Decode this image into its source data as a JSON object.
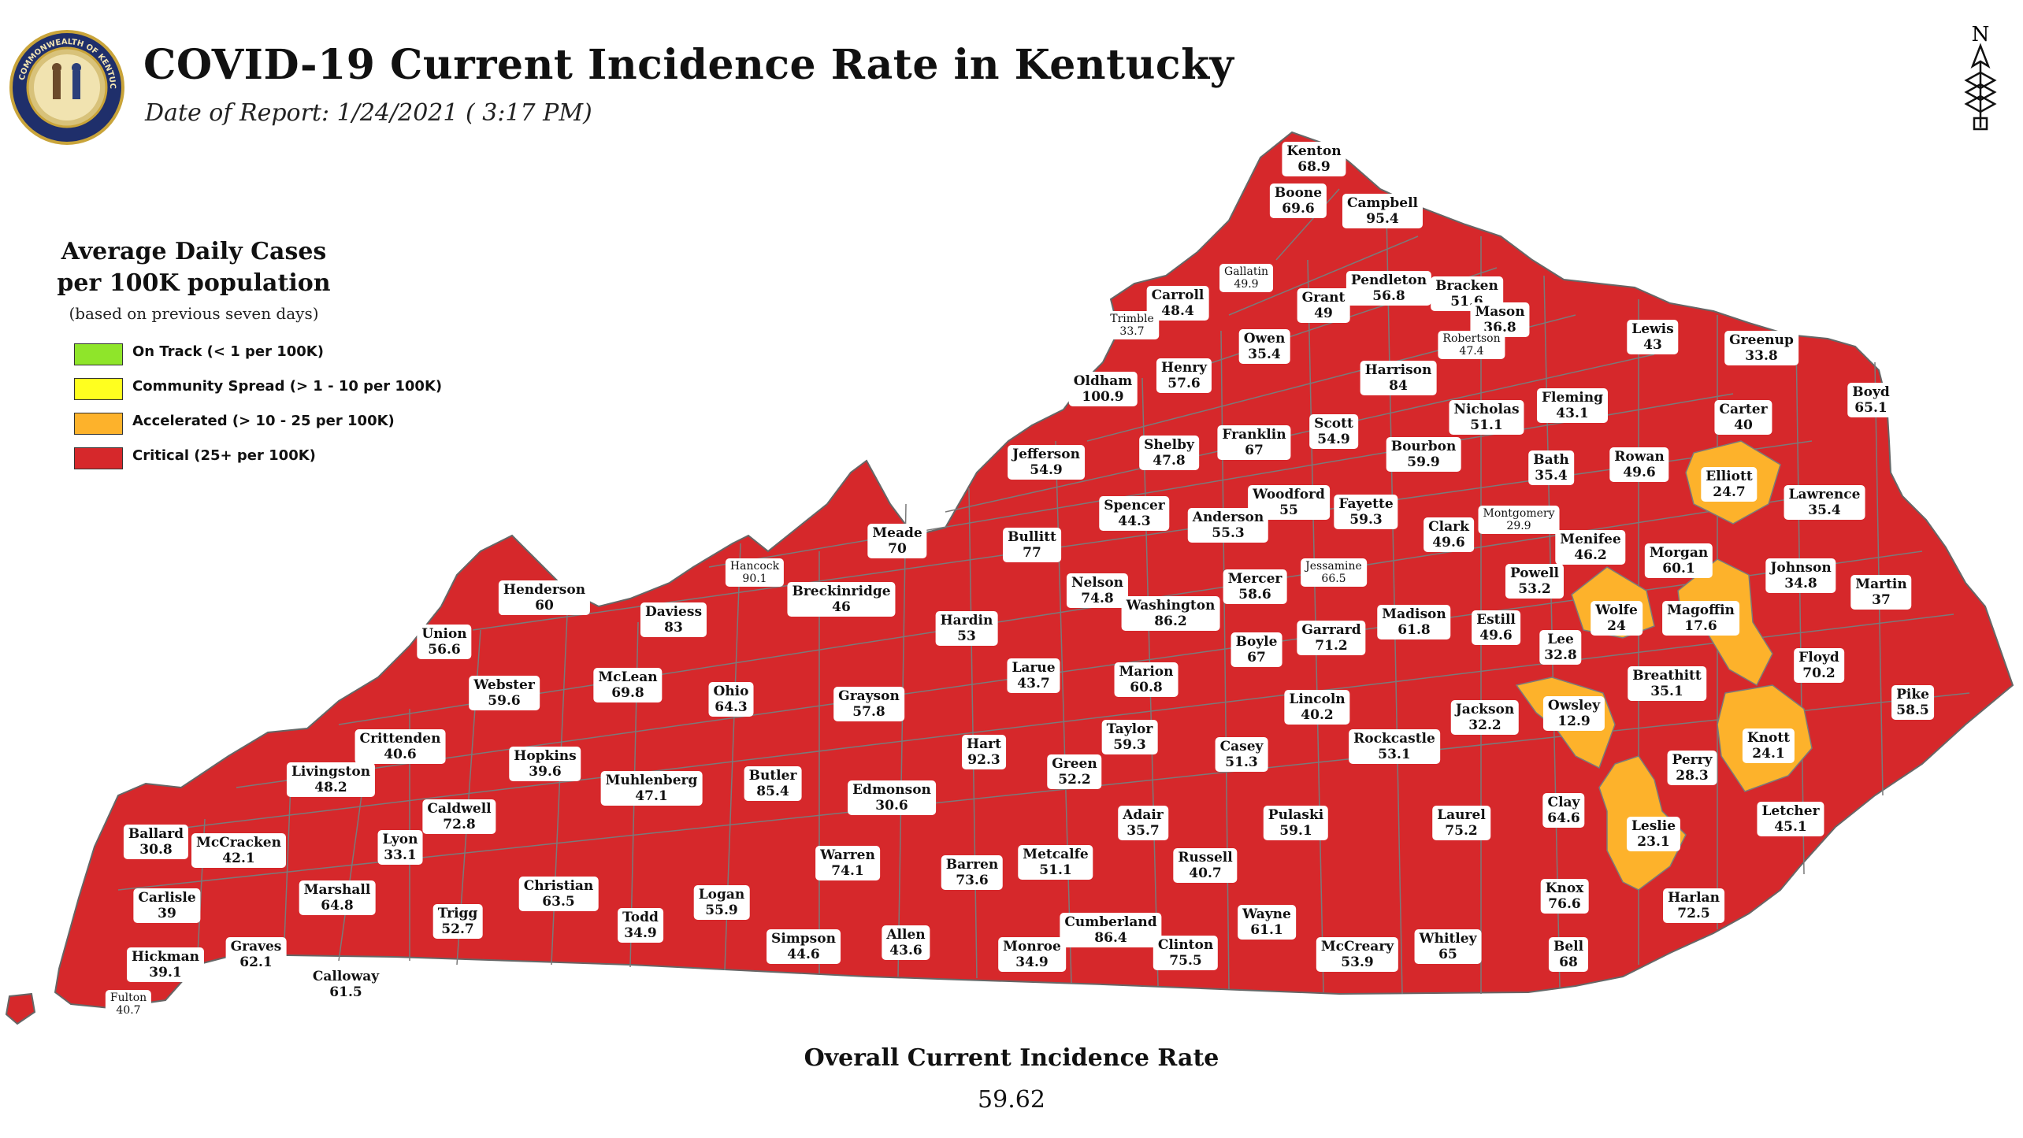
{
  "header": {
    "title": "COVID-19 Current Incidence Rate in Kentucky",
    "subtitle": "Date of Report: 1/24/2021 ( 3:17 PM)",
    "seal_text": "COMMONWEALTH OF KENTUCKY",
    "north_label": "N"
  },
  "legend": {
    "title_line1": "Average Daily Cases",
    "title_line2": "per 100K population",
    "subtitle": "(based on previous seven days)",
    "items": [
      {
        "label": "On Track (< 1 per 100K)",
        "color": "#8fe52a"
      },
      {
        "label": "Community Spread (> 1 - 10 per 100K)",
        "color": "#ffff1f"
      },
      {
        "label": "Accelerated (> 10 - 25 per 100K)",
        "color": "#fdb22b"
      },
      {
        "label": "Critical (25+ per 100K)",
        "color": "#d6282b"
      }
    ]
  },
  "colors": {
    "critical": "#d6282b",
    "accelerated": "#fdb22b",
    "border": "#777777"
  },
  "counties": [
    {
      "name": "Kenton",
      "rate": "68.9",
      "category": "critical"
    },
    {
      "name": "Boone",
      "rate": "69.6",
      "category": "critical"
    },
    {
      "name": "Campbell",
      "rate": "95.4",
      "category": "critical"
    },
    {
      "name": "Gallatin",
      "rate": "49.9",
      "category": "critical"
    },
    {
      "name": "Carroll",
      "rate": "48.4",
      "category": "critical"
    },
    {
      "name": "Trimble",
      "rate": "33.7",
      "category": "critical"
    },
    {
      "name": "Grant",
      "rate": "49",
      "category": "critical"
    },
    {
      "name": "Pendleton",
      "rate": "56.8",
      "category": "critical"
    },
    {
      "name": "Bracken",
      "rate": "51.6",
      "category": "critical"
    },
    {
      "name": "Mason",
      "rate": "36.8",
      "category": "critical"
    },
    {
      "name": "Lewis",
      "rate": "43",
      "category": "critical"
    },
    {
      "name": "Greenup",
      "rate": "33.8",
      "category": "critical"
    },
    {
      "name": "Owen",
      "rate": "35.4",
      "category": "critical"
    },
    {
      "name": "Robertson",
      "rate": "47.4",
      "category": "critical"
    },
    {
      "name": "Henry",
      "rate": "57.6",
      "category": "critical"
    },
    {
      "name": "Oldham",
      "rate": "100.9",
      "category": "critical"
    },
    {
      "name": "Harrison",
      "rate": "84",
      "category": "critical"
    },
    {
      "name": "Fleming",
      "rate": "43.1",
      "category": "critical"
    },
    {
      "name": "Boyd",
      "rate": "65.1",
      "category": "critical"
    },
    {
      "name": "Carter",
      "rate": "40",
      "category": "critical"
    },
    {
      "name": "Nicholas",
      "rate": "51.1",
      "category": "critical"
    },
    {
      "name": "Scott",
      "rate": "54.9",
      "category": "critical"
    },
    {
      "name": "Franklin",
      "rate": "67",
      "category": "critical"
    },
    {
      "name": "Shelby",
      "rate": "47.8",
      "category": "critical"
    },
    {
      "name": "Jefferson",
      "rate": "54.9",
      "category": "critical"
    },
    {
      "name": "Bourbon",
      "rate": "59.9",
      "category": "critical"
    },
    {
      "name": "Bath",
      "rate": "35.4",
      "category": "critical"
    },
    {
      "name": "Rowan",
      "rate": "49.6",
      "category": "critical"
    },
    {
      "name": "Elliott",
      "rate": "24.7",
      "category": "accelerated"
    },
    {
      "name": "Lawrence",
      "rate": "35.4",
      "category": "critical"
    },
    {
      "name": "Woodford",
      "rate": "55",
      "category": "critical"
    },
    {
      "name": "Anderson",
      "rate": "55.3",
      "category": "critical"
    },
    {
      "name": "Spencer",
      "rate": "44.3",
      "category": "critical"
    },
    {
      "name": "Fayette",
      "rate": "59.3",
      "category": "critical"
    },
    {
      "name": "Montgomery",
      "rate": "29.9",
      "category": "critical"
    },
    {
      "name": "Clark",
      "rate": "49.6",
      "category": "critical"
    },
    {
      "name": "Menifee",
      "rate": "46.2",
      "category": "critical"
    },
    {
      "name": "Meade",
      "rate": "70",
      "category": "critical"
    },
    {
      "name": "Bullitt",
      "rate": "77",
      "category": "critical"
    },
    {
      "name": "Hancock",
      "rate": "90.1",
      "category": "critical"
    },
    {
      "name": "Morgan",
      "rate": "60.1",
      "category": "critical"
    },
    {
      "name": "Johnson",
      "rate": "34.8",
      "category": "critical"
    },
    {
      "name": "Martin",
      "rate": "37",
      "category": "critical"
    },
    {
      "name": "Jessamine",
      "rate": "66.5",
      "category": "critical"
    },
    {
      "name": "Mercer",
      "rate": "58.6",
      "category": "critical"
    },
    {
      "name": "Nelson",
      "rate": "74.8",
      "category": "critical"
    },
    {
      "name": "Powell",
      "rate": "53.2",
      "category": "critical"
    },
    {
      "name": "Henderson",
      "rate": "60",
      "category": "critical"
    },
    {
      "name": "Breckinridge",
      "rate": "46",
      "category": "critical"
    },
    {
      "name": "Daviess",
      "rate": "83",
      "category": "critical"
    },
    {
      "name": "Washington",
      "rate": "86.2",
      "category": "critical"
    },
    {
      "name": "Madison",
      "rate": "61.8",
      "category": "critical"
    },
    {
      "name": "Estill",
      "rate": "49.6",
      "category": "critical"
    },
    {
      "name": "Wolfe",
      "rate": "24",
      "category": "accelerated"
    },
    {
      "name": "Magoffin",
      "rate": "17.6",
      "category": "accelerated"
    },
    {
      "name": "Hardin",
      "rate": "53",
      "category": "critical"
    },
    {
      "name": "Garrard",
      "rate": "71.2",
      "category": "critical"
    },
    {
      "name": "Union",
      "rate": "56.6",
      "category": "critical"
    },
    {
      "name": "Boyle",
      "rate": "67",
      "category": "critical"
    },
    {
      "name": "Lee",
      "rate": "32.8",
      "category": "critical"
    },
    {
      "name": "Floyd",
      "rate": "70.2",
      "category": "critical"
    },
    {
      "name": "Larue",
      "rate": "43.7",
      "category": "critical"
    },
    {
      "name": "Marion",
      "rate": "60.8",
      "category": "critical"
    },
    {
      "name": "Breathitt",
      "rate": "35.1",
      "category": "critical"
    },
    {
      "name": "McLean",
      "rate": "69.8",
      "category": "critical"
    },
    {
      "name": "Webster",
      "rate": "59.6",
      "category": "critical"
    },
    {
      "name": "Ohio",
      "rate": "64.3",
      "category": "critical"
    },
    {
      "name": "Grayson",
      "rate": "57.8",
      "category": "critical"
    },
    {
      "name": "Lincoln",
      "rate": "40.2",
      "category": "critical"
    },
    {
      "name": "Pike",
      "rate": "58.5",
      "category": "critical"
    },
    {
      "name": "Owsley",
      "rate": "12.9",
      "category": "accelerated"
    },
    {
      "name": "Jackson",
      "rate": "32.2",
      "category": "critical"
    },
    {
      "name": "Taylor",
      "rate": "59.3",
      "category": "critical"
    },
    {
      "name": "Crittenden",
      "rate": "40.6",
      "category": "critical"
    },
    {
      "name": "Knott",
      "rate": "24.1",
      "category": "accelerated"
    },
    {
      "name": "Rockcastle",
      "rate": "53.1",
      "category": "critical"
    },
    {
      "name": "Hart",
      "rate": "92.3",
      "category": "critical"
    },
    {
      "name": "Casey",
      "rate": "51.3",
      "category": "critical"
    },
    {
      "name": "Perry",
      "rate": "28.3",
      "category": "critical"
    },
    {
      "name": "Hopkins",
      "rate": "39.6",
      "category": "critical"
    },
    {
      "name": "Livingston",
      "rate": "48.2",
      "category": "critical"
    },
    {
      "name": "Green",
      "rate": "52.2",
      "category": "critical"
    },
    {
      "name": "Butler",
      "rate": "85.4",
      "category": "critical"
    },
    {
      "name": "Muhlenberg",
      "rate": "47.1",
      "category": "critical"
    },
    {
      "name": "Edmonson",
      "rate": "30.6",
      "category": "critical"
    },
    {
      "name": "Clay",
      "rate": "64.6",
      "category": "critical"
    },
    {
      "name": "Letcher",
      "rate": "45.1",
      "category": "critical"
    },
    {
      "name": "Ballard",
      "rate": "30.8",
      "category": "critical"
    },
    {
      "name": "Lyon",
      "rate": "33.1",
      "category": "critical"
    },
    {
      "name": "McCracken",
      "rate": "42.1",
      "category": "critical"
    },
    {
      "name": "Pulaski",
      "rate": "59.1",
      "category": "critical"
    },
    {
      "name": "Laurel",
      "rate": "75.2",
      "category": "critical"
    },
    {
      "name": "Adair",
      "rate": "35.7",
      "category": "critical"
    },
    {
      "name": "Leslie",
      "rate": "23.1",
      "category": "accelerated"
    },
    {
      "name": "Caldwell",
      "rate": "72.8",
      "category": "critical"
    },
    {
      "name": "Warren",
      "rate": "74.1",
      "category": "critical"
    },
    {
      "name": "Metcalfe",
      "rate": "51.1",
      "category": "critical"
    },
    {
      "name": "Russell",
      "rate": "40.7",
      "category": "critical"
    },
    {
      "name": "Barren",
      "rate": "73.6",
      "category": "critical"
    },
    {
      "name": "Marshall",
      "rate": "64.8",
      "category": "critical"
    },
    {
      "name": "Christian",
      "rate": "63.5",
      "category": "critical"
    },
    {
      "name": "Logan",
      "rate": "55.9",
      "category": "critical"
    },
    {
      "name": "Knox",
      "rate": "76.6",
      "category": "critical"
    },
    {
      "name": "Harlan",
      "rate": "72.5",
      "category": "critical"
    },
    {
      "name": "Carlisle",
      "rate": "39",
      "category": "critical"
    },
    {
      "name": "Trigg",
      "rate": "52.7",
      "category": "critical"
    },
    {
      "name": "Todd",
      "rate": "34.9",
      "category": "critical"
    },
    {
      "name": "Wayne",
      "rate": "61.1",
      "category": "critical"
    },
    {
      "name": "Cumberland",
      "rate": "86.4",
      "category": "critical"
    },
    {
      "name": "Simpson",
      "rate": "44.6",
      "category": "critical"
    },
    {
      "name": "Allen",
      "rate": "43.6",
      "category": "critical"
    },
    {
      "name": "Graves",
      "rate": "62.1",
      "category": "critical"
    },
    {
      "name": "Hickman",
      "rate": "39.1",
      "category": "critical"
    },
    {
      "name": "Whitley",
      "rate": "65",
      "category": "critical"
    },
    {
      "name": "Monroe",
      "rate": "34.9",
      "category": "critical"
    },
    {
      "name": "Clinton",
      "rate": "75.5",
      "category": "critical"
    },
    {
      "name": "McCreary",
      "rate": "53.9",
      "category": "critical"
    },
    {
      "name": "Bell",
      "rate": "68",
      "category": "critical"
    },
    {
      "name": "Calloway",
      "rate": "61.5",
      "category": "critical"
    },
    {
      "name": "Fulton",
      "rate": "40.7",
      "category": "critical"
    }
  ],
  "overall": {
    "label": "Overall Current Incidence Rate",
    "value": "59.62"
  }
}
